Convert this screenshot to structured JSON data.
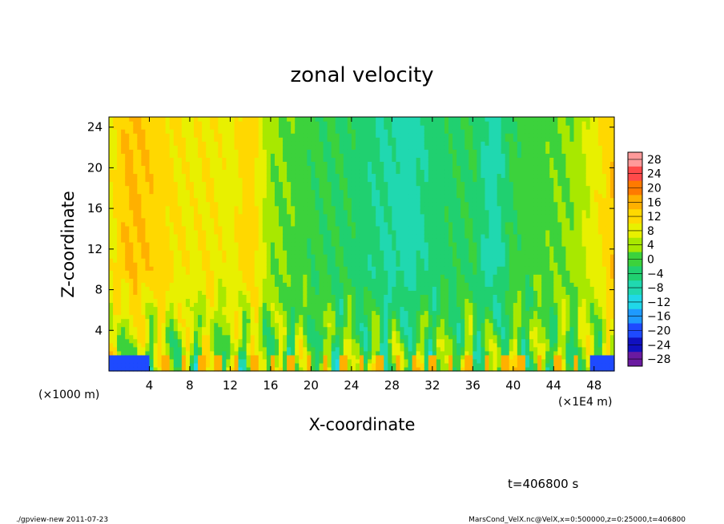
{
  "chart_data": {
    "type": "heatmap",
    "title": "zonal velocity",
    "xlabel": "X-coordinate",
    "ylabel": "Z-coordinate",
    "x_unit_left": "(×1000 m)",
    "x_unit_right": "(×1E4 m)",
    "xlim": [
      0,
      50
    ],
    "ylim": [
      0,
      25
    ],
    "x_ticks": [
      4,
      8,
      12,
      16,
      20,
      24,
      28,
      32,
      36,
      40,
      44,
      48
    ],
    "y_ticks": [
      4,
      8,
      12,
      16,
      20,
      24
    ],
    "colorbar": {
      "levels": [
        28,
        24,
        20,
        16,
        12,
        8,
        4,
        0,
        -4,
        -8,
        -12,
        -16,
        -20,
        -24,
        -28
      ],
      "level_labels": [
        "28",
        "24",
        "20",
        "16",
        "12",
        "8",
        "4",
        "0",
        "−4",
        "−8",
        "−12",
        "−16",
        "−20",
        "−24",
        "−28"
      ],
      "colors": [
        "#ff9a9a",
        "#ff4a4a",
        "#ff7a00",
        "#ffb000",
        "#ffd800",
        "#e8f000",
        "#a8e800",
        "#3cd23c",
        "#20d070",
        "#20d8b0",
        "#20d8e8",
        "#1e9aff",
        "#1e4aff",
        "#1010c0",
        "#6a1aa0"
      ]
    },
    "field_description_values": {
      "x_anchor_values_z_upper": [
        [
          0,
          6
        ],
        [
          2,
          13
        ],
        [
          4,
          11
        ],
        [
          6,
          9
        ],
        [
          8,
          7
        ],
        [
          10,
          8
        ],
        [
          12,
          6
        ],
        [
          14,
          11
        ],
        [
          16,
          1
        ],
        [
          20,
          -3
        ],
        [
          24,
          -5
        ],
        [
          28,
          -9
        ],
        [
          30,
          -10
        ],
        [
          32,
          -6
        ],
        [
          36,
          -4
        ],
        [
          38,
          -11
        ],
        [
          40,
          -3
        ],
        [
          44,
          -1
        ],
        [
          46,
          1
        ],
        [
          48,
          6
        ],
        [
          50,
          12
        ]
      ]
    }
  },
  "footer": {
    "time_label": "t=406800 s",
    "left_note": "./gpview-new  2011-07-23",
    "right_note": "MarsCond_VelX.nc@VelX,x=0:500000,z=0:25000,t=406800"
  }
}
